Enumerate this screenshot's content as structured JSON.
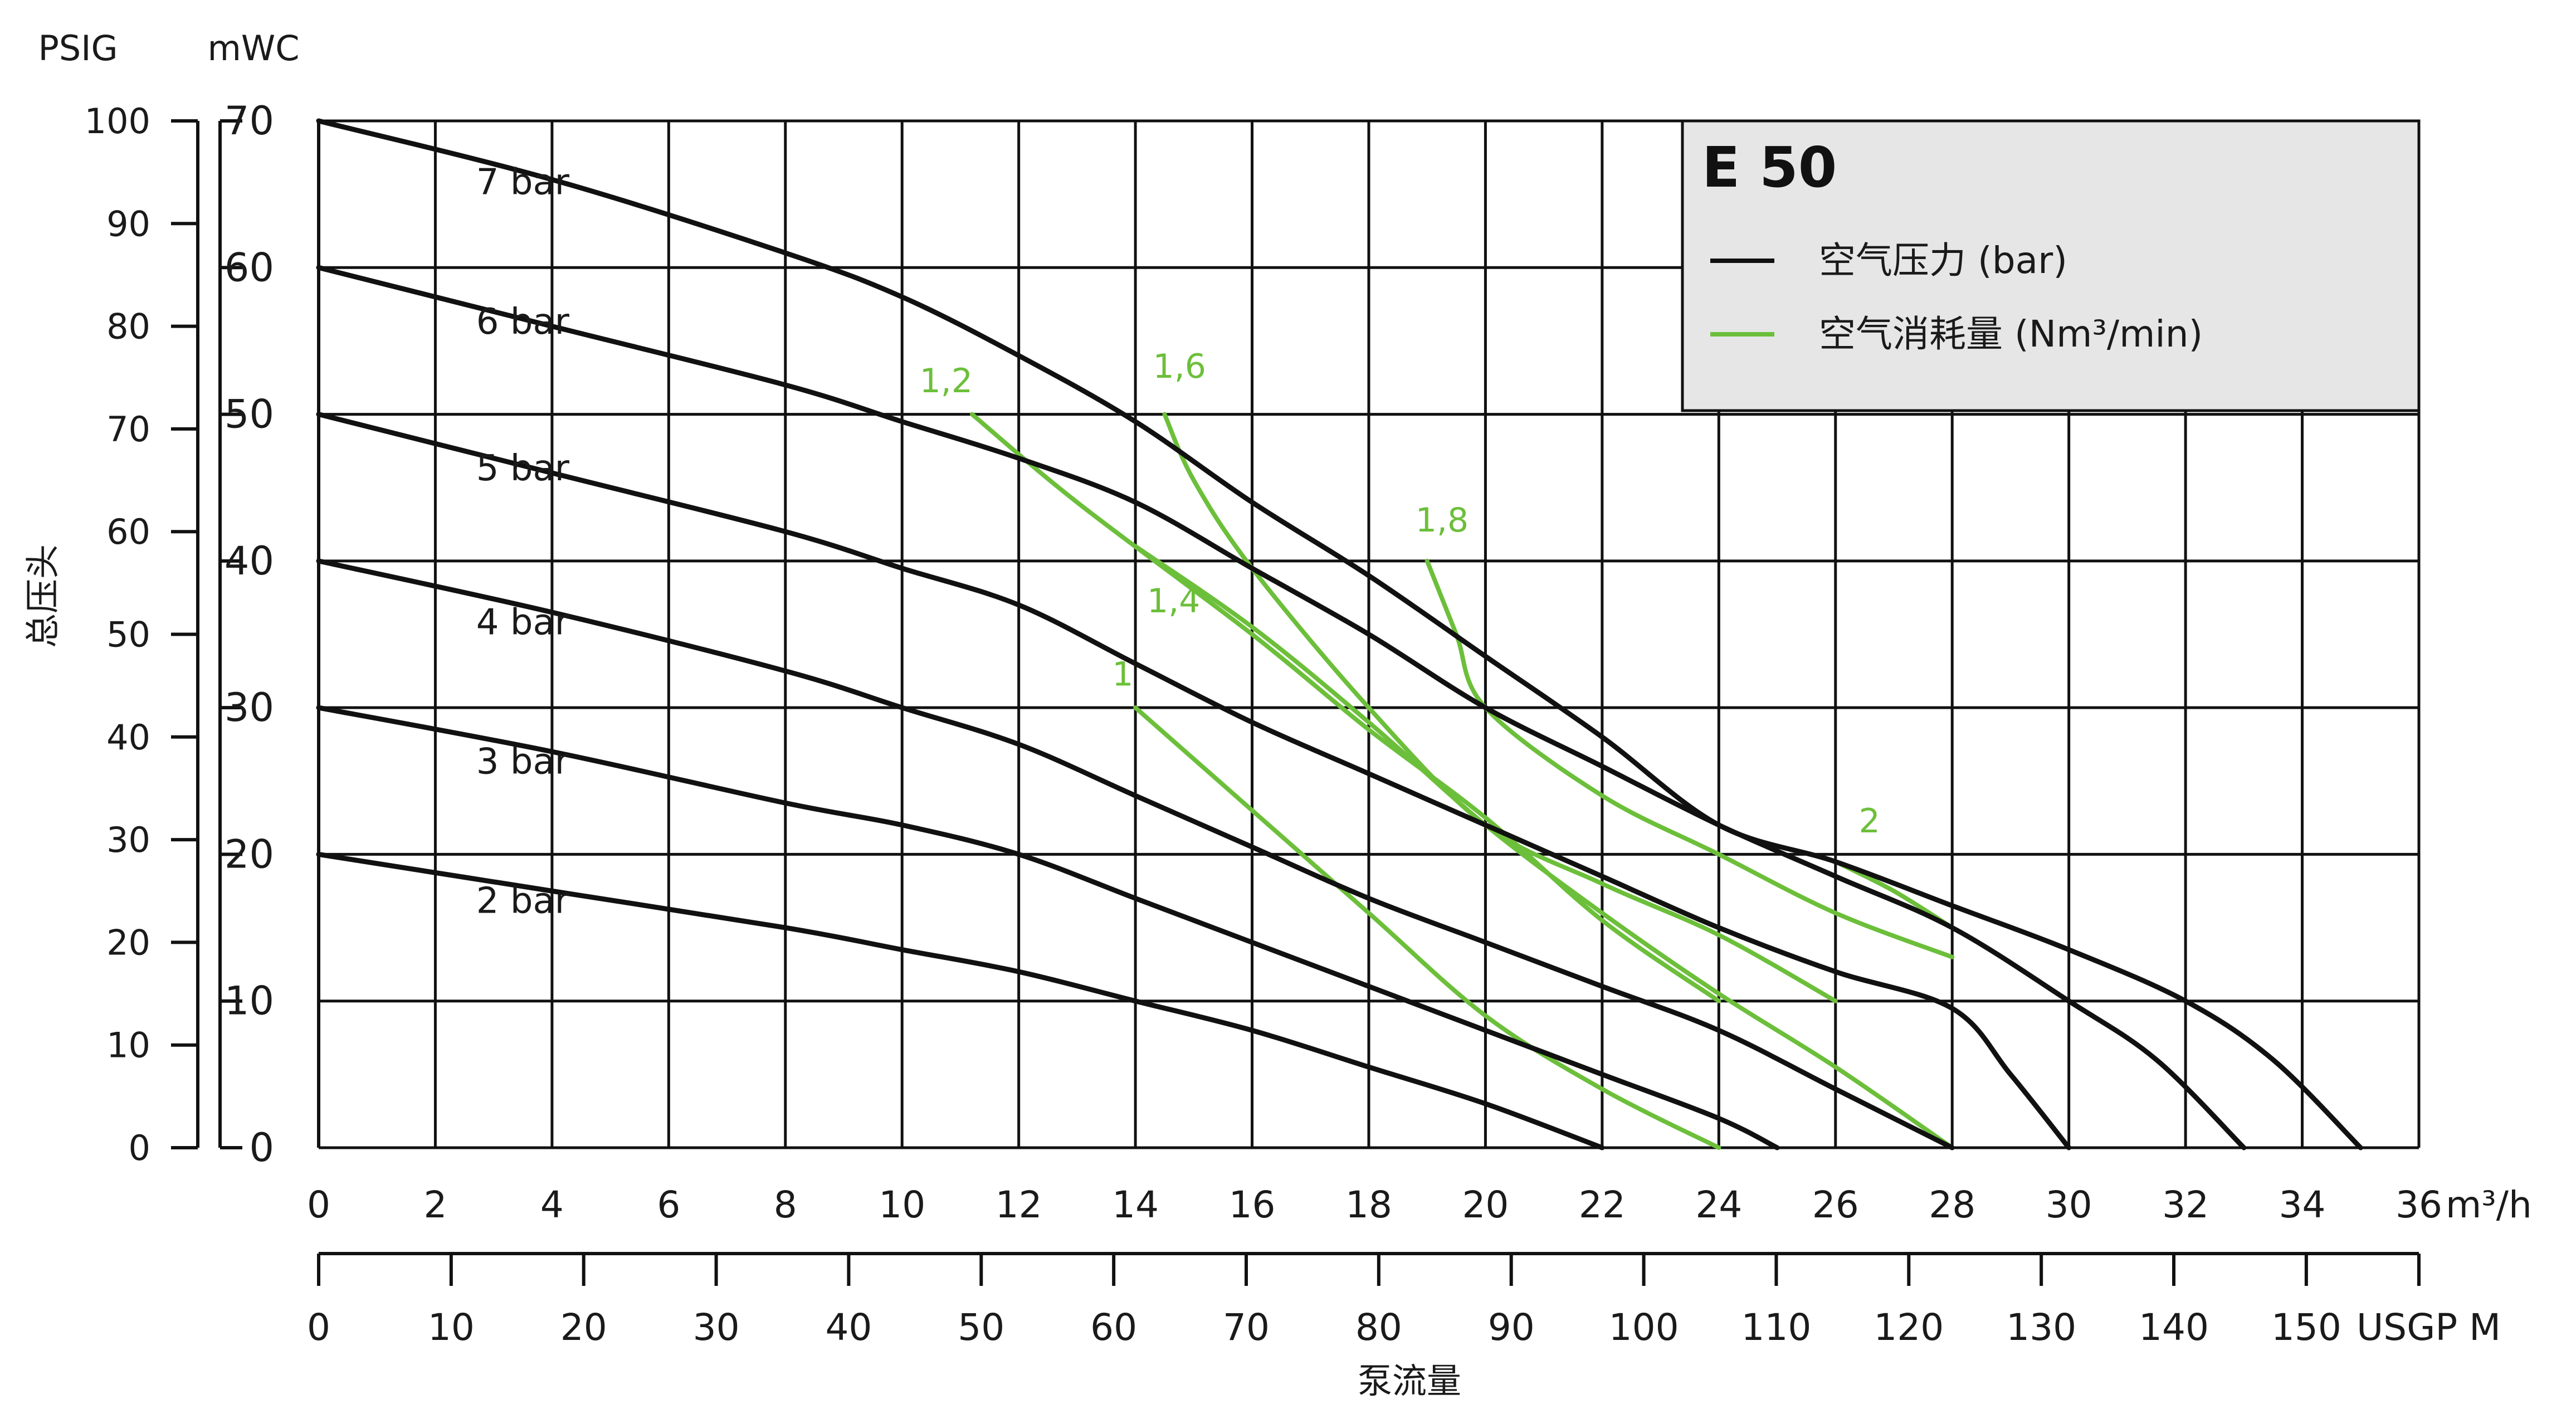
{
  "chart_data": {
    "type": "line",
    "title": "E 50",
    "legend": {
      "placement": "top-right",
      "entries": [
        {
          "label": "空气压力 (bar)",
          "color": "#111111"
        },
        {
          "label": "空气消耗量 (Nm³/min)",
          "color": "#6cbf3a"
        }
      ]
    },
    "colors": {
      "pressure": "#111111",
      "air": "#6cbf3a",
      "legend_bg": "#e6e6e6",
      "grid": "#111111"
    },
    "x_axis": {
      "unit": "m³/h",
      "range": [
        0,
        36
      ],
      "ticks": [
        0,
        2,
        4,
        6,
        8,
        10,
        12,
        14,
        16,
        18,
        20,
        22,
        24,
        26,
        28,
        30,
        32,
        34,
        36
      ]
    },
    "x2_axis": {
      "unit": "USGP M",
      "label": "泵流量",
      "ticks": [
        0,
        10,
        20,
        30,
        40,
        50,
        60,
        70,
        80,
        90,
        100,
        110,
        120,
        130,
        140,
        150
      ]
    },
    "y_axis": {
      "unit": "mWC",
      "range": [
        0,
        70
      ],
      "ticks": [
        0,
        10,
        20,
        30,
        40,
        50,
        60,
        70
      ]
    },
    "y2_axis": {
      "unit": "PSIG",
      "label": "总压头",
      "ticks": [
        0,
        10,
        20,
        30,
        40,
        50,
        60,
        70,
        80,
        90,
        100
      ]
    },
    "grid": true,
    "series": [
      {
        "name": "7 bar",
        "group": "pressure",
        "x": [
          0,
          4,
          8,
          10,
          12,
          14,
          16,
          18,
          20,
          22,
          24,
          26,
          28,
          30,
          32,
          33.5,
          35
        ],
        "y": [
          70,
          66,
          61,
          58,
          54,
          49.5,
          44,
          39,
          33.5,
          28,
          22,
          19.5,
          16.5,
          13.5,
          10,
          6,
          0
        ]
      },
      {
        "name": "6 bar",
        "group": "pressure",
        "x": [
          0,
          4,
          8,
          10,
          12,
          14,
          16,
          18,
          20,
          22,
          24,
          26,
          28,
          30,
          31.5,
          33
        ],
        "y": [
          60,
          56,
          52,
          49.5,
          47,
          44,
          39.5,
          35,
          30,
          26,
          22,
          18.5,
          15,
          10,
          6,
          0
        ]
      },
      {
        "name": "5 bar",
        "group": "pressure",
        "x": [
          0,
          4,
          8,
          10,
          12,
          14,
          16,
          18,
          20,
          22,
          24,
          26,
          28,
          29,
          30
        ],
        "y": [
          50,
          46,
          42,
          39.5,
          37,
          33,
          29,
          25.5,
          22,
          18.5,
          15,
          12,
          9.5,
          5,
          0
        ]
      },
      {
        "name": "4 bar",
        "group": "pressure",
        "x": [
          0,
          4,
          8,
          10,
          12,
          14,
          16,
          18,
          20,
          22,
          24,
          26,
          28
        ],
        "y": [
          40,
          36.5,
          32.5,
          30,
          27.5,
          24,
          20.5,
          17,
          14,
          11,
          8,
          4,
          0
        ]
      },
      {
        "name": "3 bar",
        "group": "pressure",
        "x": [
          0,
          4,
          8,
          10,
          12,
          14,
          16,
          18,
          20,
          22,
          24,
          25
        ],
        "y": [
          30,
          27,
          23.5,
          22,
          20,
          17,
          14,
          11,
          8,
          5,
          2,
          0
        ]
      },
      {
        "name": "2 bar",
        "group": "pressure",
        "x": [
          0,
          4,
          8,
          10,
          12,
          14,
          16,
          18,
          20,
          22
        ],
        "y": [
          20,
          17.5,
          15,
          13.5,
          12,
          10,
          8,
          5.5,
          3,
          0
        ]
      },
      {
        "name": "1",
        "group": "air",
        "x": [
          14,
          16,
          18,
          20,
          22,
          24
        ],
        "y": [
          30,
          23,
          16,
          9,
          4,
          0
        ]
      },
      {
        "name": "1,2",
        "group": "air",
        "x": [
          11.2,
          13,
          16,
          18,
          20,
          22,
          24
        ],
        "y": [
          50,
          44,
          35,
          28.5,
          22.5,
          15.5,
          10
        ]
      },
      {
        "name": "1,4",
        "group": "air",
        "x": [
          14,
          16,
          18,
          20,
          22,
          24,
          26,
          28
        ],
        "y": [
          41,
          35.5,
          29,
          22,
          16,
          10.5,
          5.5,
          0
        ]
      },
      {
        "name": "1,6",
        "group": "air",
        "x": [
          14.5,
          15,
          16,
          18,
          20,
          22,
          24,
          26
        ],
        "y": [
          50,
          45.5,
          39.5,
          30,
          22,
          18,
          14.5,
          10
        ]
      },
      {
        "name": "1,8",
        "group": "air",
        "x": [
          19,
          19.5,
          20,
          22,
          24,
          26,
          28
        ],
        "y": [
          40,
          35,
          30,
          24,
          20,
          16,
          13
        ]
      },
      {
        "name": "2",
        "group": "air",
        "x": [
          26,
          27,
          28
        ],
        "y": [
          19.5,
          17.5,
          15
        ]
      }
    ],
    "curve_labels": {
      "pressure": [
        {
          "text": "7 bar",
          "x": 2.7,
          "y": 65
        },
        {
          "text": "6 bar",
          "x": 2.7,
          "y": 55.5
        },
        {
          "text": "5 bar",
          "x": 2.7,
          "y": 45.5
        },
        {
          "text": "4 bar",
          "x": 2.7,
          "y": 35
        },
        {
          "text": "3 bar",
          "x": 2.7,
          "y": 25.5
        },
        {
          "text": "2 bar",
          "x": 2.7,
          "y": 16
        }
      ],
      "air": [
        {
          "text": "1",
          "x": 13.6,
          "y": 31.5
        },
        {
          "text": "1,2",
          "x": 10.3,
          "y": 51.5
        },
        {
          "text": "1,4",
          "x": 14.2,
          "y": 36.5
        },
        {
          "text": "1,6",
          "x": 14.3,
          "y": 52.5
        },
        {
          "text": "1,8",
          "x": 18.8,
          "y": 42
        },
        {
          "text": "2",
          "x": 26.4,
          "y": 21.5
        }
      ]
    }
  }
}
